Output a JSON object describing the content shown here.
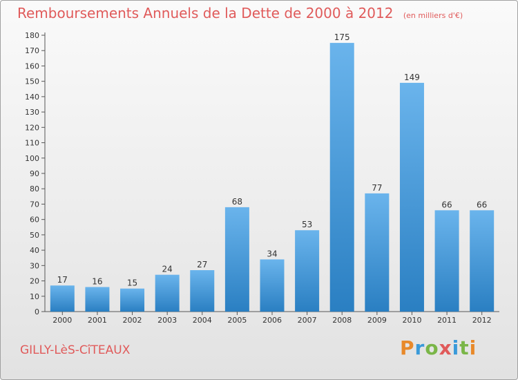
{
  "header": {
    "title": "Remboursements Annuels de la Dette de 2000 à 2012",
    "unit": "(en milliers d'€)"
  },
  "footer": {
    "town": "GILLY-LèS-CîTEAUX",
    "brand": "Proxiti"
  },
  "colors": {
    "title": "#e05a5a",
    "bar_top": "#6ab4ec",
    "bar_bottom": "#2a7fc2"
  },
  "chart_data": {
    "type": "bar",
    "categories": [
      "2000",
      "2001",
      "2002",
      "2003",
      "2004",
      "2005",
      "2006",
      "2007",
      "2008",
      "2009",
      "2010",
      "2011",
      "2012"
    ],
    "values": [
      17,
      16,
      15,
      24,
      27,
      68,
      34,
      53,
      175,
      77,
      149,
      66,
      66
    ],
    "ylim": [
      0,
      180
    ],
    "yticks": [
      0,
      10,
      20,
      30,
      40,
      50,
      60,
      70,
      80,
      90,
      100,
      110,
      120,
      130,
      140,
      150,
      160,
      170,
      180
    ],
    "grid": false,
    "data_labels": true
  }
}
